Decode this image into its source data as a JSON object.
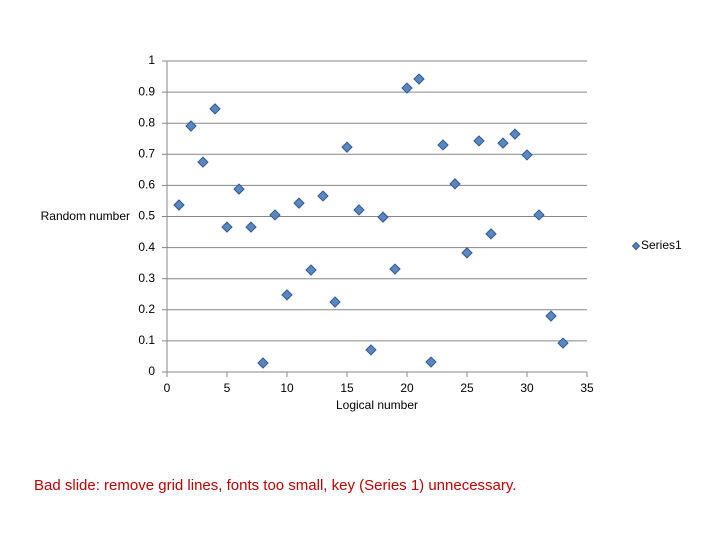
{
  "chart_data": {
    "type": "scatter",
    "x_label": "Logical number",
    "y_label": "Random number",
    "x": [
      1,
      2,
      3,
      4,
      5,
      6,
      7,
      8,
      9,
      10,
      11,
      12,
      13,
      14,
      15,
      16,
      17,
      18,
      19,
      20,
      21,
      22,
      23,
      24,
      25,
      26,
      27,
      28,
      29,
      30,
      31,
      32,
      33
    ],
    "series": [
      {
        "name": "Series1",
        "color": "#5b86c0",
        "values": [
          0.537,
          0.791,
          0.675,
          0.846,
          0.466,
          0.588,
          0.466,
          0.029,
          0.505,
          0.248,
          0.543,
          0.328,
          0.566,
          0.225,
          0.723,
          0.521,
          0.071,
          0.498,
          0.331,
          0.913,
          0.942,
          0.032,
          0.73,
          0.605,
          0.383,
          0.743,
          0.444,
          0.736,
          0.765,
          0.698,
          0.505,
          0.18,
          0.093
        ]
      }
    ],
    "xlim": [
      0,
      35
    ],
    "xticks": [
      0,
      5,
      10,
      15,
      20,
      25,
      30,
      35
    ],
    "ylim": [
      0,
      1
    ],
    "yticks": [
      0,
      0.1,
      0.2,
      0.3,
      0.4,
      0.5,
      0.6,
      0.7,
      0.8,
      0.9,
      1
    ],
    "grid": true,
    "legend": "right"
  },
  "caption": "Bad slide: remove grid lines, fonts too small, key (Series 1) unnecessary."
}
